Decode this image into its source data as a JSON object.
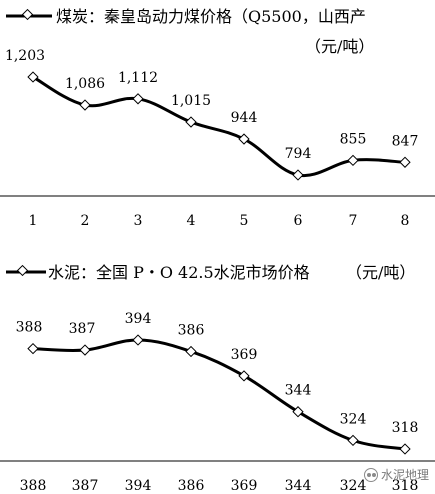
{
  "chart_data": [
    {
      "type": "line",
      "series": [
        {
          "name": "煤炭：秦皇岛动力煤价格（Q5500，山西产",
          "values": [
            1203,
            1086,
            1112,
            1015,
            944,
            794,
            855,
            847
          ]
        }
      ],
      "unit": "（元/吨）",
      "categories": [
        "1",
        "2",
        "3",
        "4",
        "5",
        "6",
        "7",
        "8"
      ],
      "value_labels": [
        "1,203",
        "1,086",
        "1,112",
        "1,015",
        "944",
        "794",
        "855",
        "847"
      ],
      "line_style": "smooth",
      "grid": false,
      "legend": "top-left"
    },
    {
      "type": "line",
      "series": [
        {
          "name": "水泥：全国 P・O 42.5水泥市场价格",
          "values": [
            388,
            387,
            394,
            386,
            369,
            344,
            324,
            318
          ]
        }
      ],
      "unit": "（元/吨）",
      "categories": [
        "388",
        "387",
        "394",
        "386",
        "369",
        "344",
        "324",
        "318"
      ],
      "value_labels": [
        "388",
        "387",
        "394",
        "386",
        "369",
        "344",
        "324",
        "318"
      ],
      "line_style": "smooth",
      "grid": false,
      "legend": "top-left"
    }
  ],
  "watermark": {
    "text": "水泥地理",
    "icon": "wechat-icon"
  },
  "colors": {
    "line": "#000000",
    "marker_fill": "#ffffff"
  }
}
